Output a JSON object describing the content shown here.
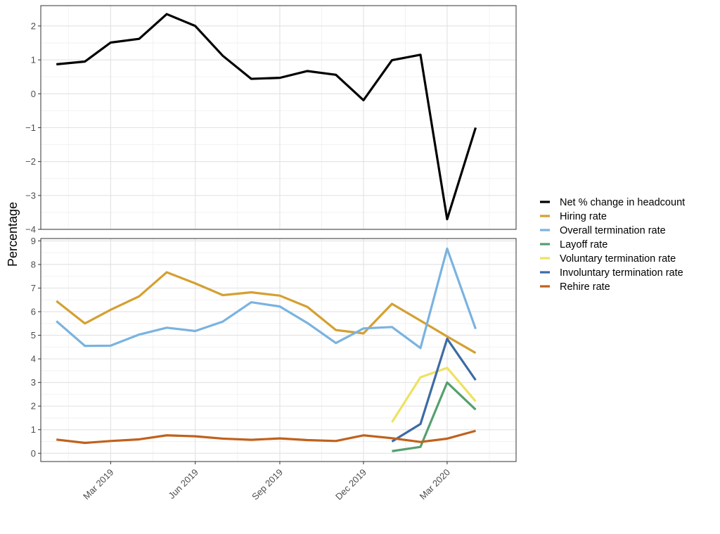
{
  "chart_data": {
    "type": "line",
    "ylabel": "Percentage",
    "x_ticks": [
      {
        "date": "2019-03-01",
        "label": "Mar 2019"
      },
      {
        "date": "2019-06-01",
        "label": "Jun 2019"
      },
      {
        "date": "2019-09-01",
        "label": "Sep 2019"
      },
      {
        "date": "2019-12-01",
        "label": "Dec 2019"
      },
      {
        "date": "2020-03-01",
        "label": "Mar 2020"
      }
    ],
    "x_range": [
      "2018-12-15",
      "2020-05-15"
    ],
    "grid": true,
    "legend_position": "right",
    "panels": [
      {
        "id": "top",
        "ylim": [
          -4,
          2.6
        ],
        "y_ticks": [
          2,
          1,
          0,
          -1,
          -2,
          -3,
          -4
        ],
        "y_tick_labels": [
          "2",
          "1",
          "0",
          "−1",
          "−2",
          "−3",
          "−4"
        ],
        "series": [
          {
            "name": "Net % change in headcount",
            "color": "#000000",
            "points": [
              [
                "2019-01-01",
                0.87
              ],
              [
                "2019-02-01",
                0.95
              ],
              [
                "2019-03-01",
                1.51
              ],
              [
                "2019-04-01",
                1.62
              ],
              [
                "2019-05-01",
                2.35
              ],
              [
                "2019-06-01",
                2.0
              ],
              [
                "2019-07-01",
                1.12
              ],
              [
                "2019-08-01",
                0.44
              ],
              [
                "2019-09-01",
                0.47
              ],
              [
                "2019-10-01",
                0.67
              ],
              [
                "2019-11-01",
                0.56
              ],
              [
                "2019-12-01",
                -0.19
              ],
              [
                "2020-01-01",
                0.99
              ],
              [
                "2020-02-01",
                1.15
              ],
              [
                "2020-03-01",
                -3.7
              ],
              [
                "2020-04-01",
                -1.0
              ]
            ]
          }
        ]
      },
      {
        "id": "bottom",
        "ylim": [
          -0.35,
          9.1
        ],
        "y_ticks": [
          9,
          8,
          7,
          6,
          5,
          4,
          3,
          2,
          1,
          0
        ],
        "y_tick_labels": [
          "9",
          "8",
          "7",
          "6",
          "5",
          "4",
          "3",
          "2",
          "1",
          "0"
        ],
        "series": [
          {
            "name": "Hiring rate",
            "color": "#d4a032",
            "points": [
              [
                "2019-01-01",
                6.45
              ],
              [
                "2019-02-01",
                5.5
              ],
              [
                "2019-03-01",
                6.08
              ],
              [
                "2019-04-01",
                6.65
              ],
              [
                "2019-05-01",
                7.67
              ],
              [
                "2019-06-01",
                7.2
              ],
              [
                "2019-07-01",
                6.7
              ],
              [
                "2019-08-01",
                6.82
              ],
              [
                "2019-09-01",
                6.68
              ],
              [
                "2019-10-01",
                6.2
              ],
              [
                "2019-11-01",
                5.22
              ],
              [
                "2019-12-01",
                5.08
              ],
              [
                "2020-01-01",
                6.33
              ],
              [
                "2020-02-01",
                5.62
              ],
              [
                "2020-03-01",
                4.95
              ],
              [
                "2020-04-01",
                4.25
              ]
            ]
          },
          {
            "name": "Overall termination rate",
            "color": "#7ab3e0",
            "points": [
              [
                "2019-01-01",
                5.6
              ],
              [
                "2019-02-01",
                4.55
              ],
              [
                "2019-03-01",
                4.56
              ],
              [
                "2019-04-01",
                5.03
              ],
              [
                "2019-05-01",
                5.32
              ],
              [
                "2019-06-01",
                5.18
              ],
              [
                "2019-07-01",
                5.58
              ],
              [
                "2019-08-01",
                6.4
              ],
              [
                "2019-09-01",
                6.22
              ],
              [
                "2019-10-01",
                5.52
              ],
              [
                "2019-11-01",
                4.67
              ],
              [
                "2019-12-01",
                5.29
              ],
              [
                "2020-01-01",
                5.35
              ],
              [
                "2020-02-01",
                4.46
              ],
              [
                "2020-03-01",
                8.67
              ],
              [
                "2020-04-01",
                5.27
              ]
            ]
          },
          {
            "name": "Layoff rate",
            "color": "#55a06e",
            "points": [
              [
                "2020-01-01",
                0.09
              ],
              [
                "2020-02-01",
                0.27
              ],
              [
                "2020-03-01",
                3.0
              ],
              [
                "2020-04-01",
                1.85
              ]
            ]
          },
          {
            "name": "Voluntary termination rate",
            "color": "#ede262",
            "points": [
              [
                "2020-01-01",
                1.32
              ],
              [
                "2020-02-01",
                3.22
              ],
              [
                "2020-03-01",
                3.62
              ],
              [
                "2020-04-01",
                2.2
              ]
            ]
          },
          {
            "name": "Involuntary termination rate",
            "color": "#3d6ba3",
            "points": [
              [
                "2020-01-01",
                0.5
              ],
              [
                "2020-02-01",
                1.24
              ],
              [
                "2020-03-01",
                4.85
              ],
              [
                "2020-04-01",
                3.1
              ]
            ]
          },
          {
            "name": "Rehire rate",
            "color": "#c0611c",
            "points": [
              [
                "2019-01-01",
                0.58
              ],
              [
                "2019-02-01",
                0.44
              ],
              [
                "2019-03-01",
                0.52
              ],
              [
                "2019-04-01",
                0.59
              ],
              [
                "2019-05-01",
                0.76
              ],
              [
                "2019-06-01",
                0.72
              ],
              [
                "2019-07-01",
                0.62
              ],
              [
                "2019-08-01",
                0.57
              ],
              [
                "2019-09-01",
                0.63
              ],
              [
                "2019-10-01",
                0.56
              ],
              [
                "2019-11-01",
                0.52
              ],
              [
                "2019-12-01",
                0.76
              ],
              [
                "2020-01-01",
                0.64
              ],
              [
                "2020-02-01",
                0.48
              ],
              [
                "2020-03-01",
                0.62
              ],
              [
                "2020-04-01",
                0.95
              ]
            ]
          }
        ]
      }
    ]
  }
}
